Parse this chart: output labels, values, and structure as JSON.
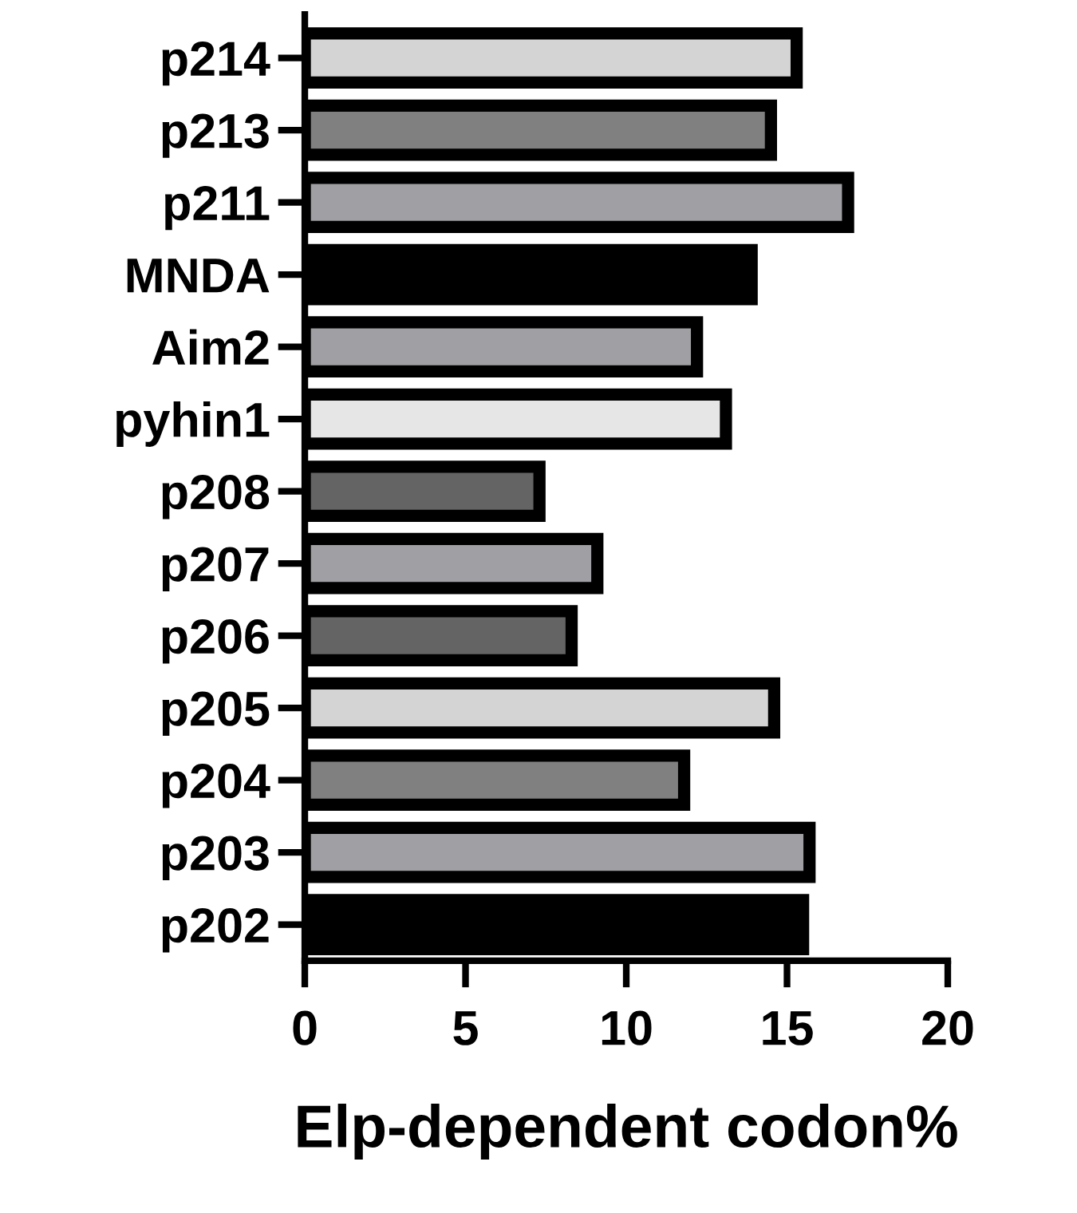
{
  "chart_data": {
    "type": "bar",
    "orientation": "horizontal",
    "xlabel": "Elp-dependent codon%",
    "categories": [
      "p214",
      "p213",
      "p211",
      "MNDA",
      "Aim2",
      "pyhin1",
      "p208",
      "p207",
      "p206",
      "p205",
      "p204",
      "p203",
      "p202"
    ],
    "values": [
      15.3,
      14.5,
      16.9,
      13.9,
      12.2,
      13.1,
      7.3,
      9.1,
      8.3,
      14.6,
      11.8,
      15.7,
      15.5
    ],
    "colors": [
      "#d4d4d4",
      "#808080",
      "#a0a0a4",
      "#000000",
      "#a0a0a4",
      "#e6e6e6",
      "#646464",
      "#a0a0a4",
      "#646464",
      "#d4d4d4",
      "#808080",
      "#a0a0a4",
      "#000000"
    ],
    "xlim": [
      0,
      20
    ],
    "xticks": [
      0,
      5,
      10,
      15,
      20
    ],
    "grid": false,
    "legend": false
  }
}
